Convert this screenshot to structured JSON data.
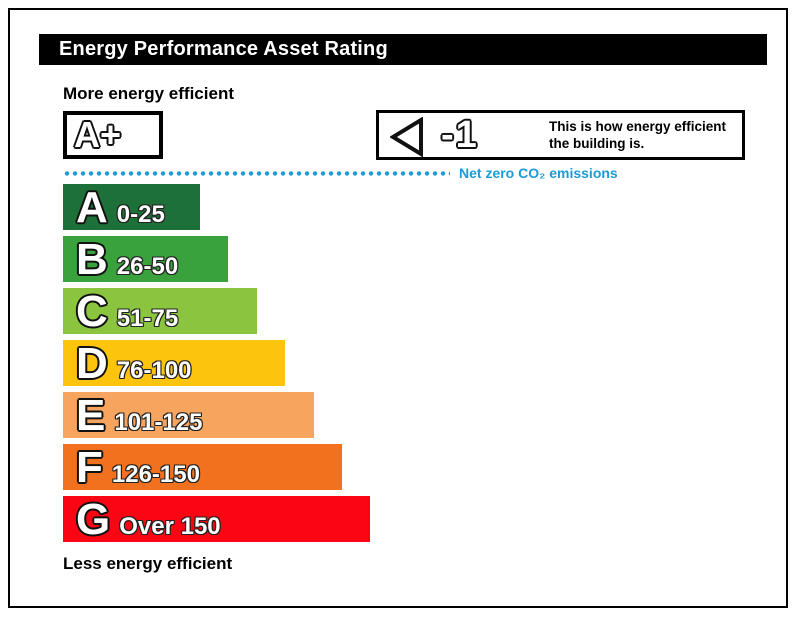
{
  "title": "Energy Performance Asset Rating",
  "labels": {
    "more": "More energy efficient",
    "less": "Less energy efficient"
  },
  "aplus_box": {
    "label": "A+"
  },
  "indicator": {
    "value": "-1",
    "description_line1": "This is how energy efficient",
    "description_line2": "the building is.",
    "arrow_icon": "left-arrow-icon"
  },
  "net_zero": {
    "label": "Net zero CO₂ emissions",
    "color": "#1e9bd7"
  },
  "chart_data": {
    "type": "bar",
    "orientation": "horizontal",
    "title": "Energy Performance Asset Rating",
    "top_annotation": "More energy efficient",
    "bottom_annotation": "Less energy efficient",
    "net_zero_annotation": "Net zero CO₂ emissions",
    "aplus_band": "A+",
    "current_rating": "-1",
    "bands": [
      {
        "letter": "A",
        "range": "0-25",
        "color": "#1d7038"
      },
      {
        "letter": "B",
        "range": "26-50",
        "color": "#39a23d"
      },
      {
        "letter": "C",
        "range": "51-75",
        "color": "#8bc53f"
      },
      {
        "letter": "D",
        "range": "76-100",
        "color": "#fdc40d"
      },
      {
        "letter": "E",
        "range": "101-125",
        "color": "#f6a45e"
      },
      {
        "letter": "F",
        "range": "126-150",
        "color": "#f2711f"
      },
      {
        "letter": "G",
        "range": "Over 150",
        "color": "#fa0514"
      }
    ]
  }
}
